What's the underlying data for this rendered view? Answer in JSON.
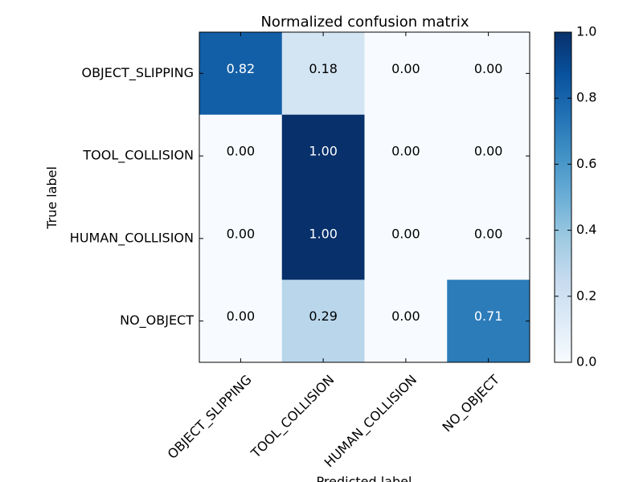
{
  "chart_data": {
    "type": "heatmap",
    "title": "Normalized confusion matrix",
    "xlabel": "Predicted label",
    "ylabel": "True label",
    "x_categories": [
      "OBJECT_SLIPPING",
      "TOOL_COLLISION",
      "HUMAN_COLLISION",
      "NO_OBJECT"
    ],
    "y_categories": [
      "OBJECT_SLIPPING",
      "TOOL_COLLISION",
      "HUMAN_COLLISION",
      "NO_OBJECT"
    ],
    "values": [
      [
        0.82,
        0.18,
        0.0,
        0.0
      ],
      [
        0.0,
        1.0,
        0.0,
        0.0
      ],
      [
        0.0,
        1.0,
        0.0,
        0.0
      ],
      [
        0.0,
        0.29,
        0.0,
        0.71
      ]
    ],
    "cell_labels": [
      [
        "0.82",
        "0.18",
        "0.00",
        "0.00"
      ],
      [
        "0.00",
        "1.00",
        "0.00",
        "0.00"
      ],
      [
        "0.00",
        "1.00",
        "0.00",
        "0.00"
      ],
      [
        "0.00",
        "0.29",
        "0.00",
        "0.71"
      ]
    ],
    "colorbar": {
      "range": [
        0.0,
        1.0
      ],
      "ticks": [
        0.0,
        0.2,
        0.4,
        0.6,
        0.8,
        1.0
      ],
      "tick_labels": [
        "0.0",
        "0.2",
        "0.4",
        "0.6",
        "0.8",
        "1.0"
      ],
      "colormap": "Blues"
    }
  },
  "colors": {
    "cmap_low": "#f7fbff",
    "cmap_high": "#08306b",
    "text_dark": "#000000",
    "text_light": "#ffffff"
  }
}
